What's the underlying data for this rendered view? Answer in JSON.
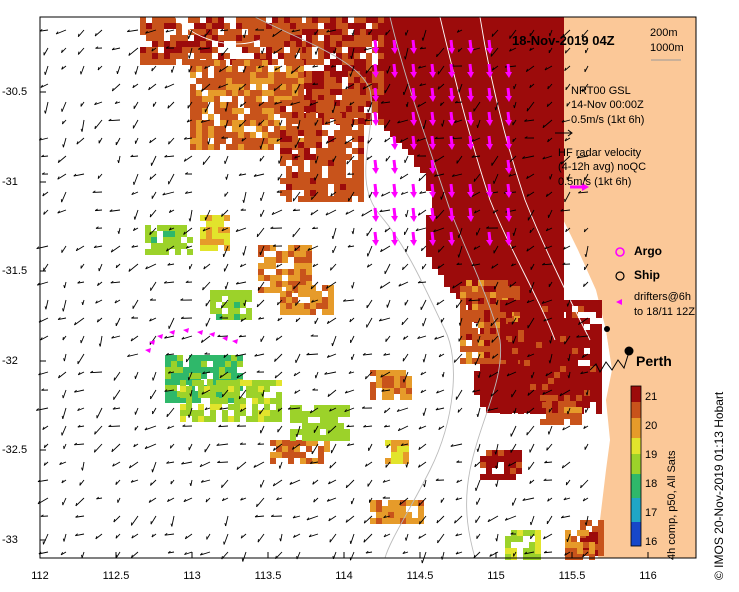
{
  "title": "18-Nov-2019 04Z",
  "depth_contours": [
    "200m",
    "1000m"
  ],
  "legend": {
    "gsl_model": "NRT00 GSL",
    "gsl_time": "14-Nov 00:00Z",
    "gsl_scale": "0.5m/s (1kt 6h)",
    "hf_title": "HF radar velocity",
    "hf_sub": "(4-12h avg) noQC",
    "hf_scale": "0.5m/s (1kt 6h)",
    "argo": "Argo",
    "ship": "Ship",
    "drifters_1": "drifters@6h",
    "drifters_2": "to 18/11 12Z"
  },
  "place": "Perth",
  "colorbar": {
    "label": "4h comp, p50, All Sats",
    "ticks": [
      "21",
      "20",
      "19",
      "18",
      "17",
      "16"
    ],
    "min": 15.8,
    "max": 21.3
  },
  "axes": {
    "x_ticks": [
      "112",
      "112.5",
      "113",
      "113.5",
      "114",
      "114.5",
      "115",
      "115.5",
      "116"
    ],
    "y_ticks": [
      "-30.5",
      "-31",
      "-31.5",
      "-32",
      "-32.5",
      "-33"
    ]
  },
  "credit": "© IMOS 20-Nov-2019 01:13 Hobart",
  "colors": {
    "land": "#fbc898",
    "hot": "#a90b0b",
    "vector": "#000000",
    "hf_vector": "#ff00ff"
  }
}
